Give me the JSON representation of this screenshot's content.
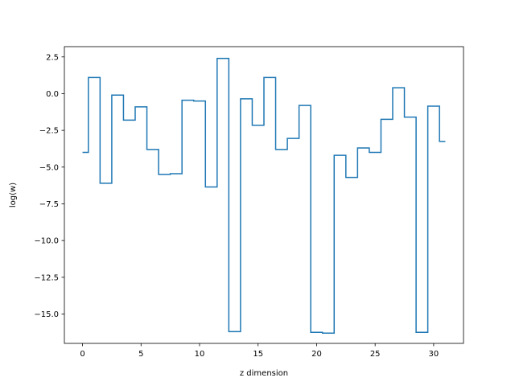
{
  "chart_data": {
    "type": "line",
    "step": "mid",
    "xlabel": "z dimension",
    "ylabel": "log(w)",
    "xlim": [
      -1.55,
      32.55
    ],
    "ylim": [
      -17.0,
      3.2
    ],
    "grid": false,
    "legend": "none",
    "xticks": [
      0,
      5,
      10,
      15,
      20,
      25,
      30
    ],
    "xtick_labels": [
      "0",
      "5",
      "10",
      "15",
      "20",
      "25",
      "30"
    ],
    "yticks": [
      2.5,
      0,
      -2.5,
      -5,
      -7.5,
      -10,
      -12.5,
      -15
    ],
    "ytick_labels": [
      "2.5",
      "0.0",
      "−2.5",
      "−5.0",
      "−7.5",
      "−10.0",
      "−12.5",
      "−15.0"
    ],
    "series": [
      {
        "color": "#1f77b4",
        "x": [
          0,
          1,
          2,
          3,
          4,
          5,
          6,
          7,
          8,
          9,
          10,
          11,
          12,
          13,
          14,
          15,
          16,
          17,
          18,
          19,
          20,
          21,
          22,
          23,
          24,
          25,
          26,
          27,
          28,
          29,
          30,
          31
        ],
        "values": [
          -4.0,
          1.1,
          -6.1,
          -0.1,
          -1.8,
          -0.9,
          -3.8,
          -5.5,
          -5.45,
          -0.45,
          -0.5,
          -6.35,
          2.4,
          -16.2,
          -0.35,
          -2.15,
          1.1,
          -3.8,
          -3.05,
          -0.8,
          -16.25,
          -16.3,
          -4.2,
          -5.7,
          -3.7,
          -4.0,
          -1.75,
          0.4,
          -1.6,
          -16.25,
          -0.85,
          -3.25
        ]
      }
    ]
  }
}
